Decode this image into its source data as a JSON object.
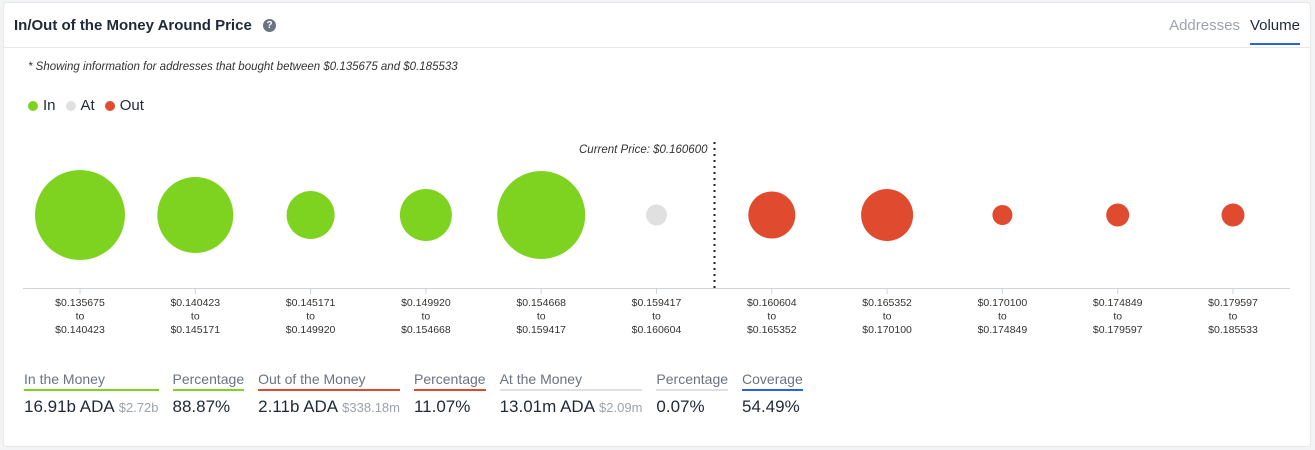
{
  "header": {
    "title": "In/Out of the Money Around Price",
    "help_icon": "question-circle-icon",
    "tabs": [
      {
        "label": "Addresses",
        "active": false
      },
      {
        "label": "Volume",
        "active": true
      }
    ]
  },
  "note": "* Showing information for addresses that bought between $0.135675 and $0.185533",
  "legend": [
    {
      "label": "In",
      "color": "#7ed321"
    },
    {
      "label": "At",
      "color": "#e0e0e0"
    },
    {
      "label": "Out",
      "color": "#e04a2f"
    }
  ],
  "chart_data": {
    "type": "scatter",
    "current_price_label": "Current Price: $0.160600",
    "ranges": [
      {
        "from": "$0.135675",
        "to": "$0.140423",
        "status": "in",
        "size": 45
      },
      {
        "from": "$0.140423",
        "to": "$0.145171",
        "status": "in",
        "size": 38
      },
      {
        "from": "$0.145171",
        "to": "$0.149920",
        "status": "in",
        "size": 24
      },
      {
        "from": "$0.149920",
        "to": "$0.154668",
        "status": "in",
        "size": 26
      },
      {
        "from": "$0.154668",
        "to": "$0.159417",
        "status": "in",
        "size": 44
      },
      {
        "from": "$0.159417",
        "to": "$0.160604",
        "status": "at",
        "size": 10.5
      },
      {
        "from": "$0.160604",
        "to": "$0.165352",
        "status": "out",
        "size": 23.5
      },
      {
        "from": "$0.165352",
        "to": "$0.170100",
        "status": "out",
        "size": 26
      },
      {
        "from": "$0.170100",
        "to": "$0.174849",
        "status": "out",
        "size": 10
      },
      {
        "from": "$0.174849",
        "to": "$0.179597",
        "status": "out",
        "size": 11.5
      },
      {
        "from": "$0.179597",
        "to": "$0.185533",
        "status": "out",
        "size": 11.5
      }
    ],
    "range_joiner": "to",
    "colors": {
      "in": "#7ed321",
      "at": "#e0e0e0",
      "out": "#e04a2f"
    }
  },
  "stats": [
    {
      "label": "In the Money",
      "value": "16.91b ADA",
      "sub": "$2.72b",
      "color": "#7ed321"
    },
    {
      "label": "Percentage",
      "value": "88.87%",
      "sub": "",
      "color": "#7ed321"
    },
    {
      "label": "Out of the Money",
      "value": "2.11b ADA",
      "sub": "$338.18m",
      "color": "#e04a2f"
    },
    {
      "label": "Percentage",
      "value": "11.07%",
      "sub": "",
      "color": "#e04a2f"
    },
    {
      "label": "At the Money",
      "value": "13.01m ADA",
      "sub": "$2.09m",
      "color": "#e0e0e0"
    },
    {
      "label": "Percentage",
      "value": "0.07%",
      "sub": "",
      "color": "#e0e0e0"
    },
    {
      "label": "Coverage",
      "value": "54.49%",
      "sub": "",
      "color": "#2563eb"
    }
  ]
}
